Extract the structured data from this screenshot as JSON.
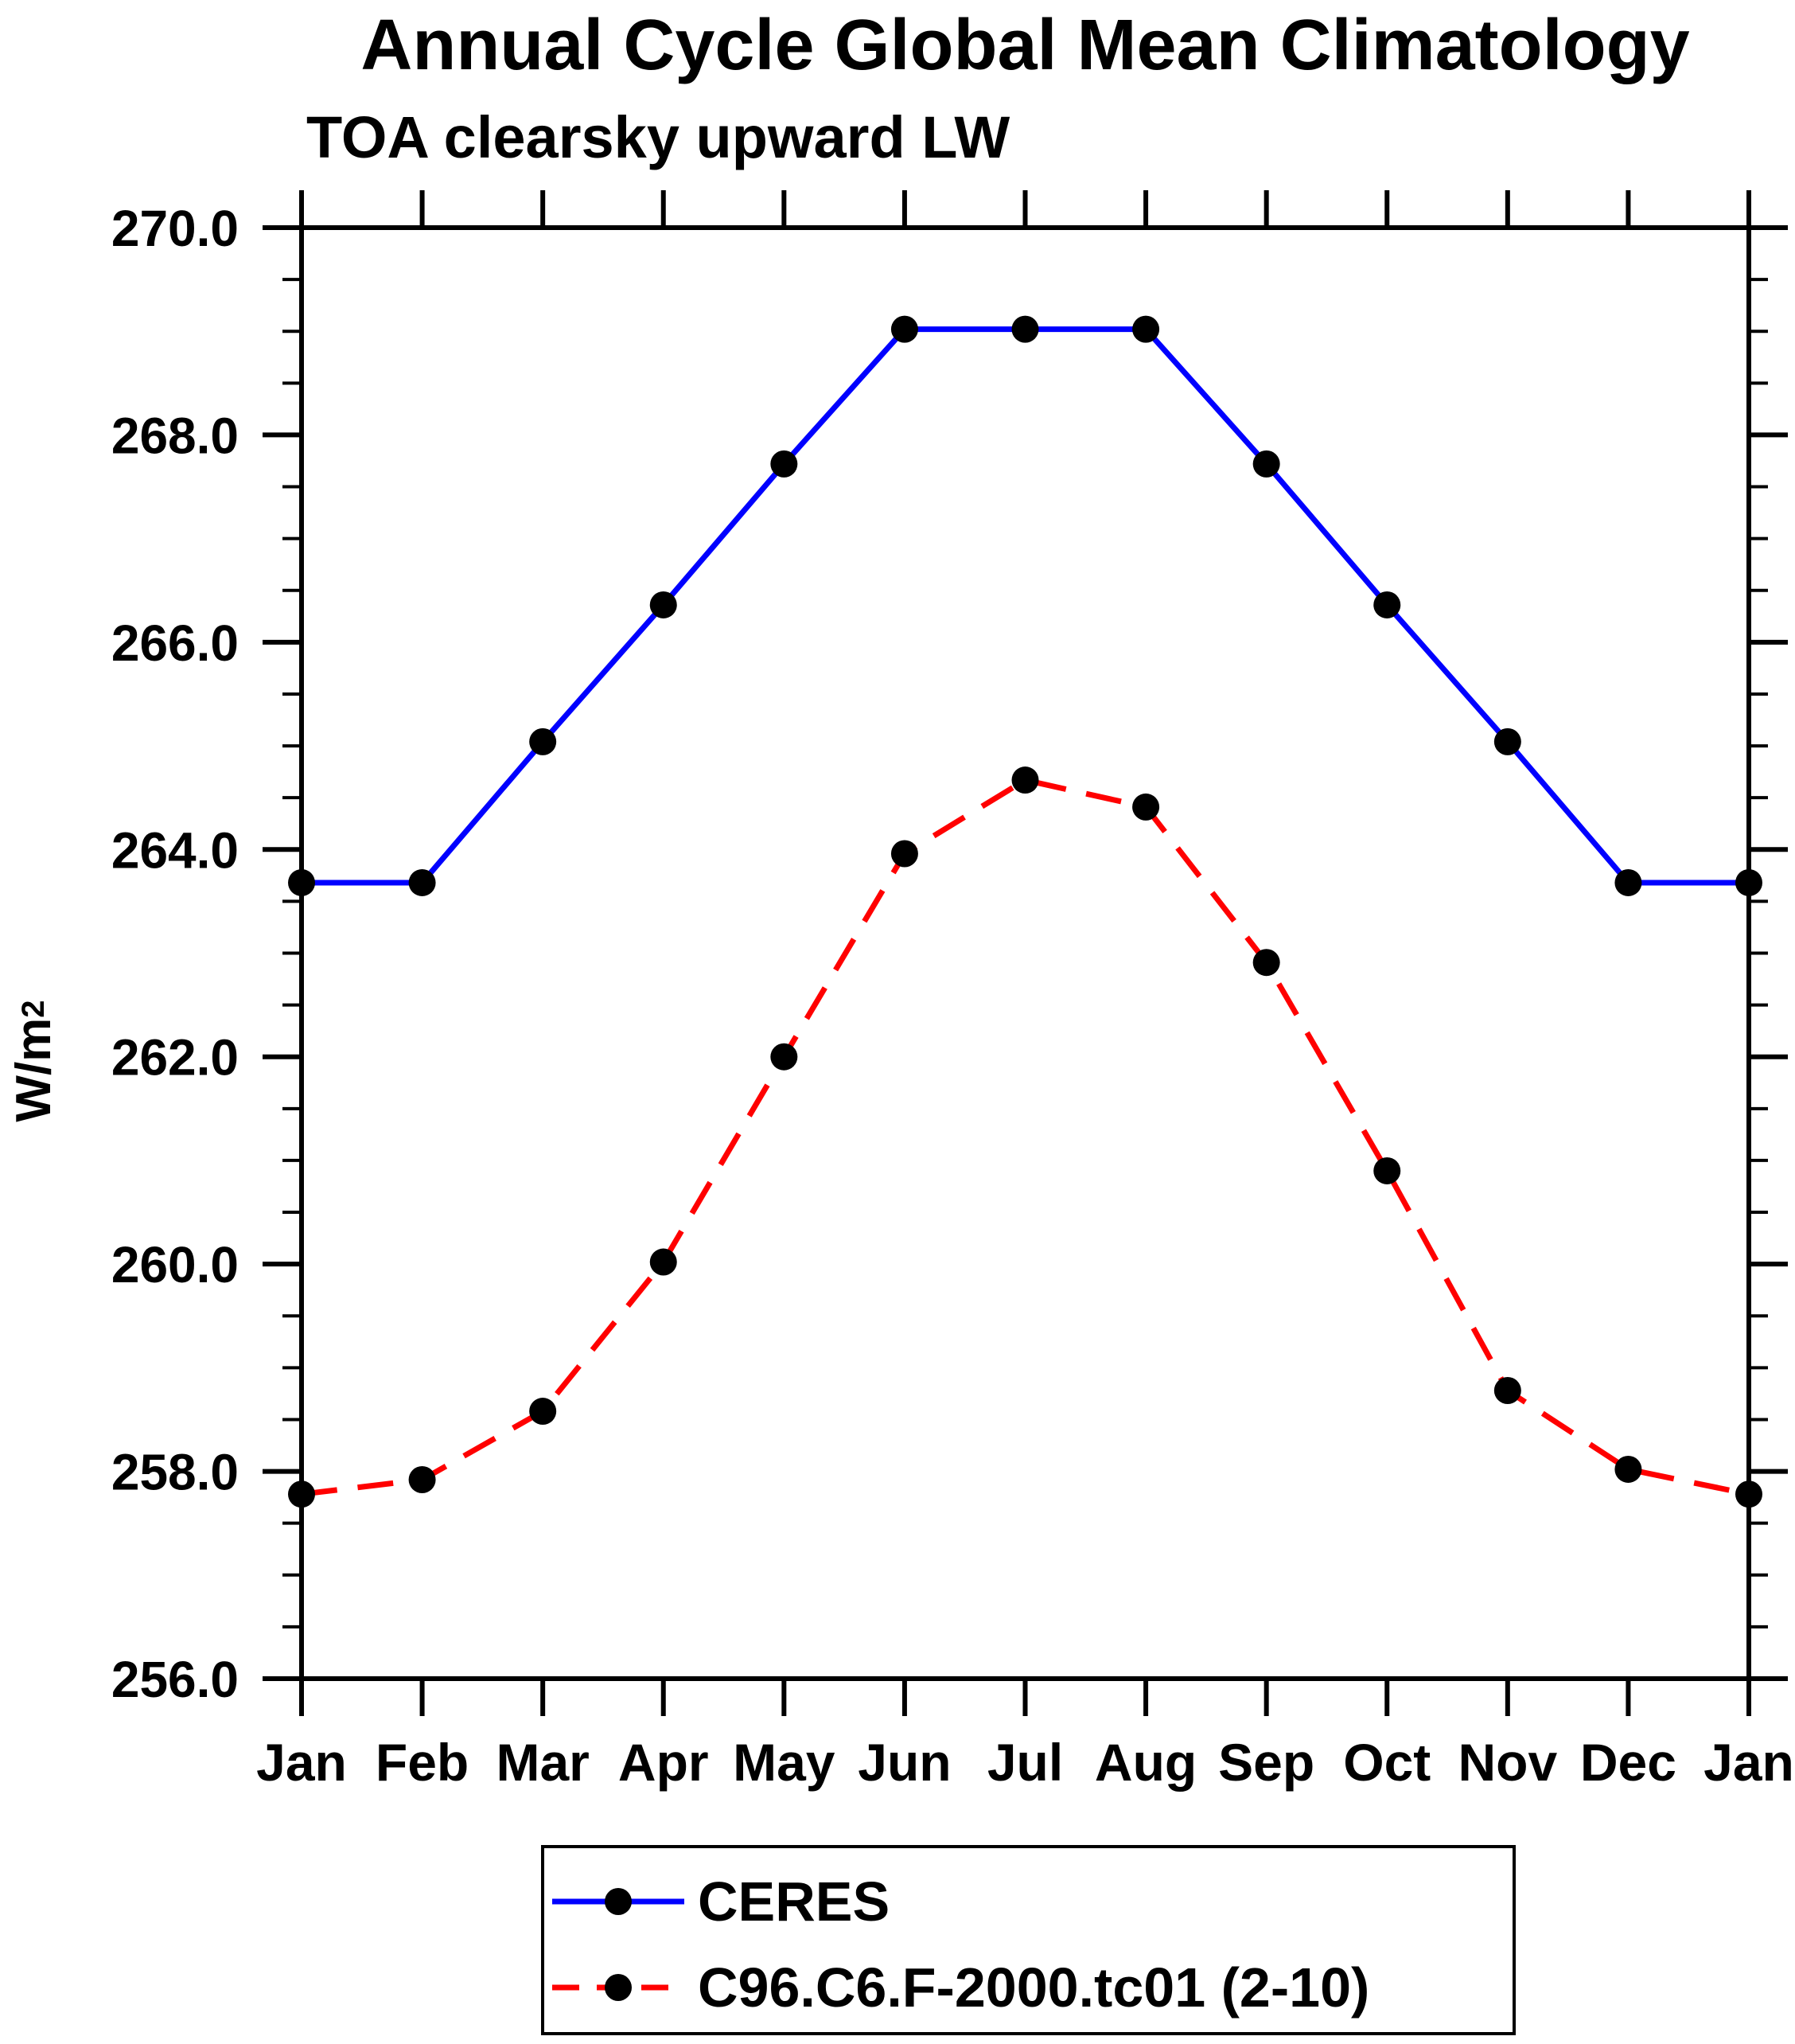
{
  "figure": {
    "y_axis_label_base": "W/m",
    "y_axis_label_exponent": "2"
  },
  "chart_data": {
    "type": "line",
    "title": "Annual Cycle Global Mean Climatology",
    "subtitle": "TOA clearsky upward LW",
    "ylabel": "W/m²",
    "xlabel": "",
    "categories": [
      "Jan",
      "Feb",
      "Mar",
      "Apr",
      "May",
      "Jun",
      "Jul",
      "Aug",
      "Sep",
      "Oct",
      "Nov",
      "Dec",
      "Jan"
    ],
    "ylim": [
      256.0,
      270.0
    ],
    "ytick_major_step": 2.0,
    "ytick_minor_step": 0.5,
    "ytick_format_decimals": 1,
    "grid": false,
    "legend_position": "bottom",
    "marker": "filled-circle",
    "marker_color": "#000000",
    "axis_color": "#000000",
    "background_color": "#ffffff",
    "series": [
      {
        "name": "CERES",
        "color": "#0000ff",
        "style": "solid",
        "values": [
          263.68,
          263.68,
          265.04,
          266.36,
          267.72,
          269.02,
          269.02,
          269.02,
          267.72,
          266.36,
          265.04,
          263.68,
          263.68
        ]
      },
      {
        "name": "C96.C6.F-2000.tc01 (2-10)",
        "color": "#ff0000",
        "style": "dashed",
        "values": [
          257.78,
          257.92,
          258.58,
          260.02,
          262.0,
          263.96,
          264.67,
          264.41,
          262.91,
          260.9,
          258.78,
          258.02,
          257.78
        ]
      }
    ]
  }
}
